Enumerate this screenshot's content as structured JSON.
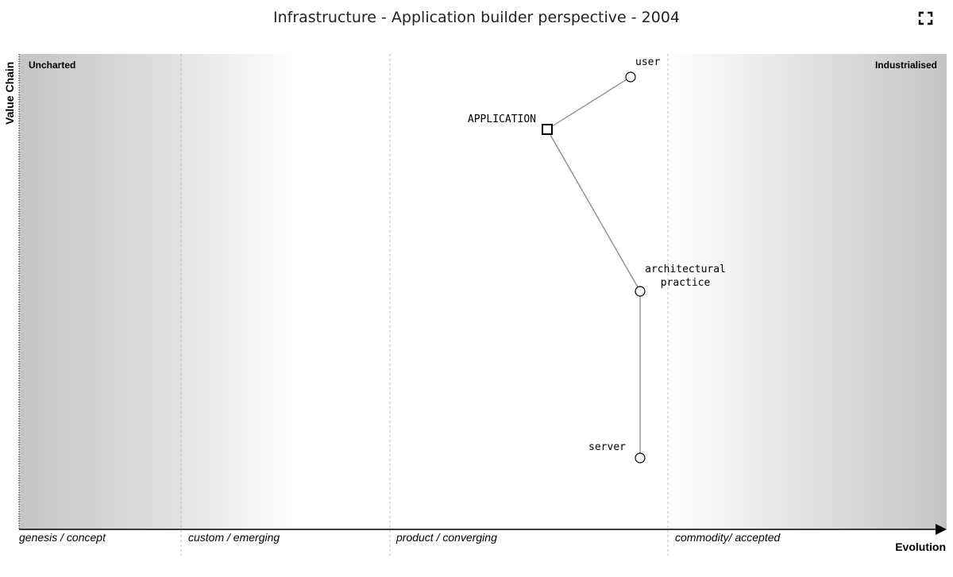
{
  "header": {
    "title": "Infrastructure - Application builder perspective - 2004"
  },
  "axes": {
    "y_label": "Value Chain",
    "x_label": "Evolution"
  },
  "regions": [
    "Uncharted",
    "Industrialised"
  ],
  "stages": [
    "genesis / concept",
    "custom / emerging",
    "product / converging",
    "commodity/ accepted"
  ],
  "nodes": [
    {
      "lines": [
        "user"
      ]
    },
    {
      "lines": [
        "APPLICATION"
      ]
    },
    {
      "lines": [
        "architectural",
        "practice"
      ]
    },
    {
      "lines": [
        "server"
      ]
    }
  ]
}
